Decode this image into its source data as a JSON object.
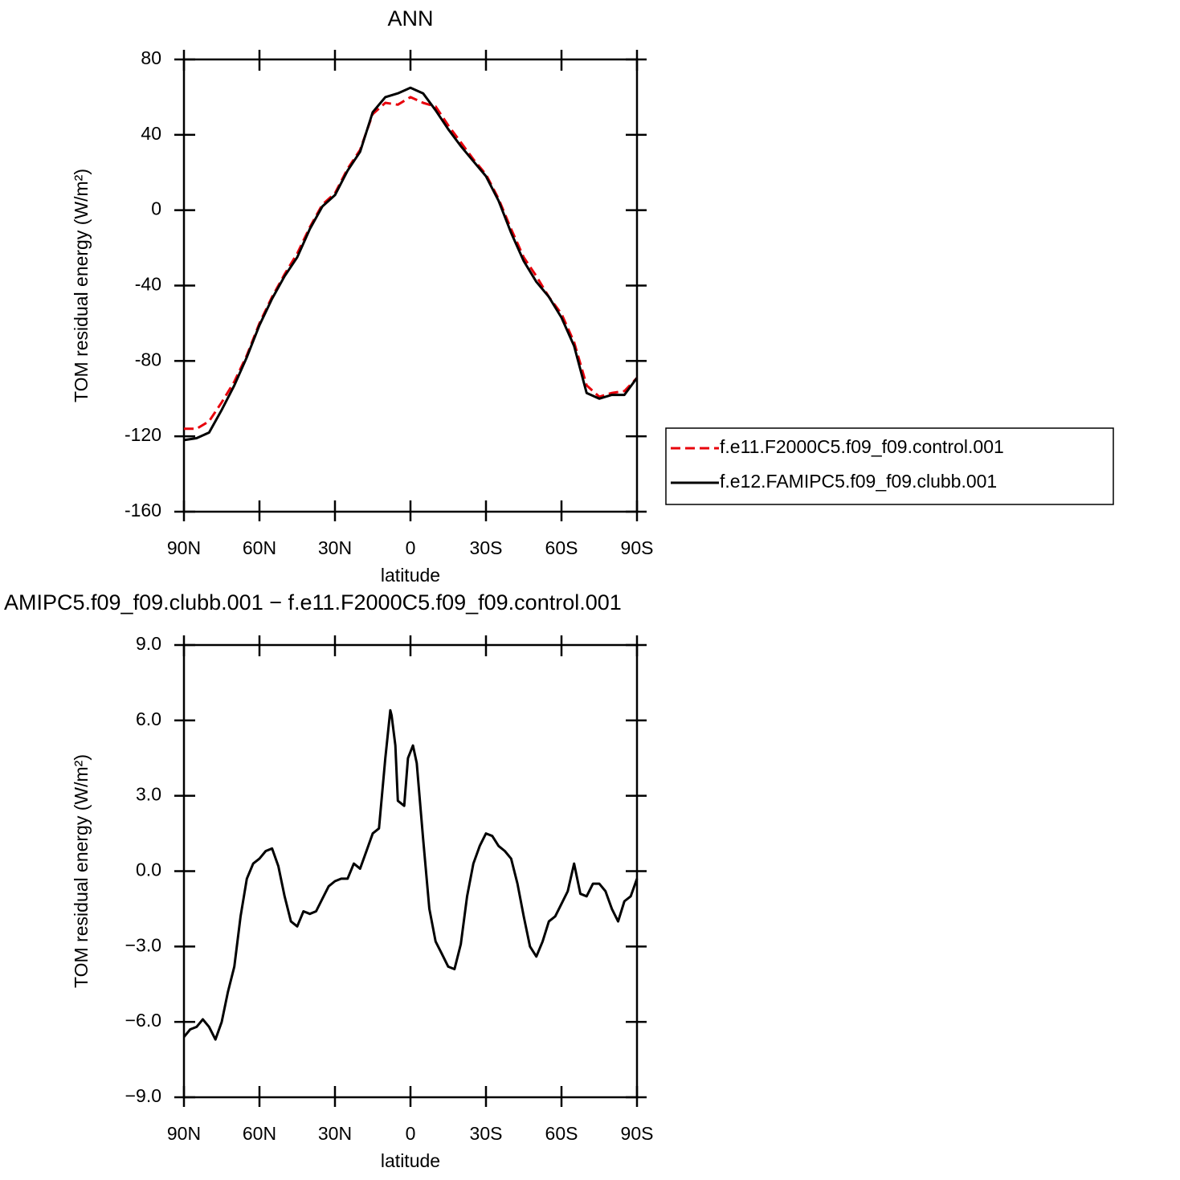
{
  "chart_data": [
    {
      "type": "line",
      "title": "ANN",
      "xlabel": "latitude",
      "ylabel": "TOM residual energy (W/m²)",
      "x": [
        90,
        85,
        80,
        75,
        70,
        65,
        60,
        55,
        50,
        45,
        40,
        35,
        30,
        25,
        20,
        15,
        10,
        5,
        0,
        -5,
        -10,
        -15,
        -20,
        -25,
        -30,
        -35,
        -40,
        -45,
        -50,
        -55,
        -60,
        -65,
        -70,
        -75,
        -80,
        -85,
        -90
      ],
      "series": [
        {
          "name": "f.e11.F2000C5.f09_f09.control.001",
          "color": "#e8000b",
          "dashed": true,
          "values": [
            -116,
            -116,
            -112,
            -102,
            -91,
            -77,
            -60,
            -46,
            -34,
            -23,
            -9,
            3,
            9,
            22,
            32,
            51,
            57,
            56,
            60,
            57,
            55,
            45,
            36,
            27,
            19,
            6,
            -10,
            -25,
            -35,
            -46,
            -55,
            -70,
            -93,
            -99,
            -97,
            -96,
            -89
          ]
        },
        {
          "name": "f.e12.FAMIPC5.f09_f09.clubb.001",
          "color": "#000000",
          "dashed": false,
          "values": [
            -122,
            -121,
            -118,
            -106,
            -93,
            -78,
            -61,
            -47,
            -35,
            -25,
            -10,
            2,
            8,
            21,
            31,
            52,
            60,
            62,
            65,
            62,
            53,
            43,
            34,
            26,
            18,
            5,
            -12,
            -27,
            -38,
            -46,
            -57,
            -72,
            -97,
            -100,
            -98,
            -98,
            -89
          ]
        }
      ],
      "xlim": [
        90,
        -90
      ],
      "xticks": [
        {
          "value": 90,
          "label": "90N"
        },
        {
          "value": 60,
          "label": "60N"
        },
        {
          "value": 30,
          "label": "30N"
        },
        0,
        {
          "value": -30,
          "label": "30S"
        },
        {
          "value": -60,
          "label": "60S"
        },
        {
          "value": -90,
          "label": "90S"
        }
      ],
      "ylim": [
        -160,
        80
      ],
      "yticks": [
        80,
        40,
        0,
        -40,
        -80,
        -120,
        -160
      ],
      "legend": "right"
    },
    {
      "type": "line",
      "title": "AMIPC5.f09_f09.clubb.001 − f.e11.F2000C5.f09_f09.control.001",
      "xlabel": "latitude",
      "ylabel": "TOM residual energy (W/m²)",
      "x": [
        90,
        87.5,
        85,
        82.5,
        80,
        77.5,
        75,
        72.5,
        70,
        67.5,
        65,
        62.5,
        60,
        57.5,
        55,
        52.5,
        50,
        47.5,
        45,
        42.5,
        40,
        37.5,
        35,
        32.5,
        30,
        27.5,
        25,
        22.5,
        20,
        17.5,
        15,
        12.5,
        10,
        8,
        7.5,
        6,
        5,
        2.5,
        1,
        -1,
        -2.5,
        -5,
        -7.5,
        -10,
        -12.5,
        -15,
        -17.5,
        -20,
        -22.5,
        -25,
        -27.5,
        -30,
        -32.5,
        -35,
        -37.5,
        -40,
        -42.5,
        -45,
        -47.5,
        -50,
        -52.5,
        -55,
        -57.5,
        -60,
        -62.5,
        -65,
        -67.5,
        -70,
        -72.5,
        -75,
        -77.5,
        -80,
        -82.5,
        -85,
        -87.5,
        -90
      ],
      "values": [
        -6.6,
        -6.3,
        -6.2,
        -5.9,
        -6.2,
        -6.7,
        -6.0,
        -4.8,
        -3.8,
        -1.8,
        -0.3,
        0.3,
        0.5,
        0.8,
        0.9,
        0.2,
        -1.0,
        -2.0,
        -2.2,
        -1.6,
        -1.7,
        -1.6,
        -1.1,
        -0.6,
        -0.4,
        -0.3,
        -0.3,
        0.3,
        0.1,
        0.8,
        1.5,
        1.7,
        4.5,
        6.4,
        6.2,
        5.0,
        2.8,
        2.6,
        4.5,
        5.0,
        4.3,
        1.3,
        -1.5,
        -2.8,
        -3.3,
        -3.8,
        -3.9,
        -2.9,
        -1.0,
        0.3,
        1.0,
        1.5,
        1.4,
        1.0,
        0.8,
        0.5,
        -0.5,
        -1.8,
        -3.0,
        -3.4,
        -2.8,
        -2.0,
        -1.8,
        -1.3,
        -0.8,
        0.3,
        -0.9,
        -1.0,
        -0.5,
        -0.5,
        -0.8,
        -1.5,
        -2.0,
        -1.2,
        -1.0,
        -0.3
      ],
      "color": "#000000",
      "xlim": [
        90,
        -90
      ],
      "xticks": [
        {
          "value": 90,
          "label": "90N"
        },
        {
          "value": 60,
          "label": "60N"
        },
        {
          "value": 30,
          "label": "30N"
        },
        0,
        {
          "value": -30,
          "label": "30S"
        },
        {
          "value": -60,
          "label": "60S"
        },
        {
          "value": -90,
          "label": "90S"
        }
      ],
      "ylim": [
        -9,
        9
      ],
      "yticks": [
        {
          "value": 9,
          "label": "9.0"
        },
        {
          "value": 6,
          "label": "6.0"
        },
        {
          "value": 3,
          "label": "3.0"
        },
        {
          "value": 0,
          "label": "0.0"
        },
        {
          "value": -3,
          "label": "−3.0"
        },
        {
          "value": -6,
          "label": "−6.0"
        },
        {
          "value": -9,
          "label": "−9.0"
        }
      ]
    }
  ]
}
